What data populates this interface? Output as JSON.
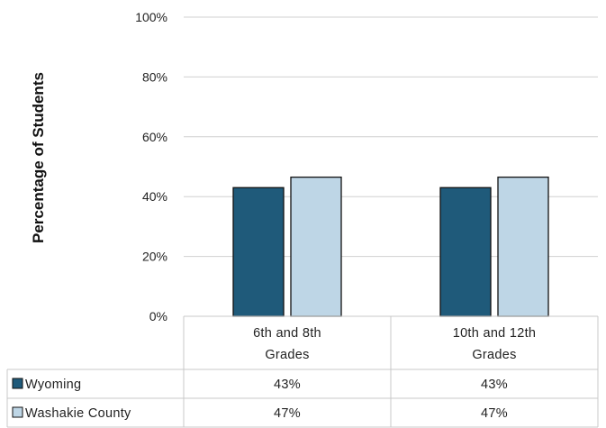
{
  "chart_data": {
    "type": "bar",
    "ylabel": "Percentage of Students",
    "ylim": [
      0,
      100
    ],
    "yticks": [
      0,
      20,
      40,
      60,
      80,
      100
    ],
    "ytick_labels": [
      "0%",
      "20%",
      "40%",
      "60%",
      "80%",
      "100%"
    ],
    "categories": [
      [
        "6th and 8th",
        "Grades"
      ],
      [
        "10th and 12th",
        "Grades"
      ]
    ],
    "grid": true,
    "legend": "data-table",
    "series": [
      {
        "name": "Wyoming",
        "values": [
          43,
          43
        ],
        "labels": [
          "43%",
          "43%"
        ],
        "color": "#1f5a7a"
      },
      {
        "name": "Washakie County",
        "values": [
          46.5,
          46.5
        ],
        "labels": [
          "47%",
          "47%"
        ],
        "color": "#bed6e6"
      }
    ]
  }
}
